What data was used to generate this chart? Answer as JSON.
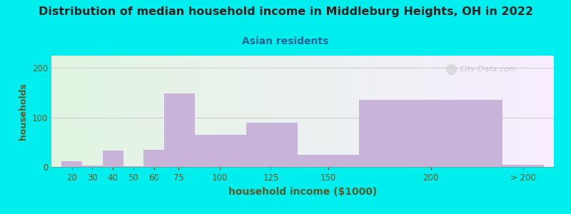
{
  "title": "Distribution of median household income in Middleburg Heights, OH in 2022",
  "subtitle": "Asian residents",
  "xlabel": "household income ($1000)",
  "ylabel": "households",
  "title_fontsize": 11.5,
  "subtitle_fontsize": 10,
  "xlabel_fontsize": 10,
  "ylabel_fontsize": 9,
  "background_color": "#00EEEE",
  "bar_color": "#c8b4d8",
  "watermark": "City-Data.com",
  "categories": [
    "20",
    "30",
    "40",
    "50",
    "60",
    "75",
    "100",
    "125",
    "150",
    "200",
    "> 200"
  ],
  "bar_lefts": [
    15,
    25,
    35,
    45,
    55,
    65,
    80,
    105,
    130,
    160,
    230
  ],
  "bar_rights": [
    25,
    35,
    45,
    55,
    65,
    80,
    105,
    130,
    160,
    230,
    250
  ],
  "bar_heights": [
    12,
    3,
    33,
    2,
    35,
    148,
    65,
    90,
    25,
    135,
    5
  ],
  "ylim": [
    0,
    225
  ],
  "yticks": [
    0,
    100,
    200
  ],
  "tick_labels_x": [
    "20",
    "30",
    "40",
    "50",
    "60",
    "75",
    "100",
    "125",
    "150",
    "200",
    "> 200"
  ],
  "tick_pos_x": [
    20,
    30,
    40,
    50,
    60,
    72,
    92,
    117,
    145,
    195,
    240
  ],
  "title_color": "#222222",
  "subtitle_color": "#1a6699",
  "axis_label_color": "#5a5a2a",
  "tick_color": "#5a5a2a",
  "grid_color": "#cccccc"
}
